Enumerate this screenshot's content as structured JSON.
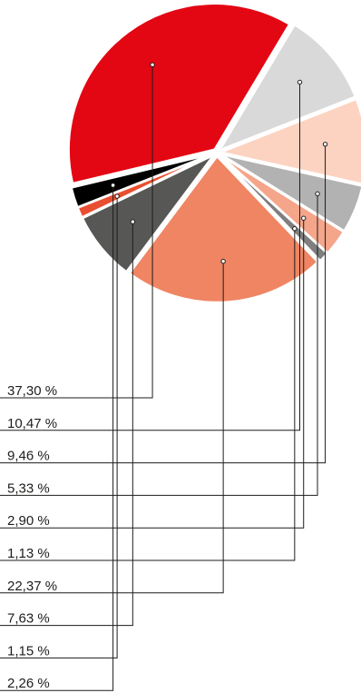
{
  "chart_data": {
    "type": "pie",
    "title": "",
    "slices": [
      {
        "label": "37,30 %",
        "value": 37.3,
        "color": "#e30613"
      },
      {
        "label": "10,47 %",
        "value": 10.47,
        "color": "#d9d9d9"
      },
      {
        "label": "9,46 %",
        "value": 9.46,
        "color": "#fcd3c1"
      },
      {
        "label": "5,33 %",
        "value": 5.33,
        "color": "#b2b2b2"
      },
      {
        "label": "2,90 %",
        "value": 2.9,
        "color": "#f4a58a"
      },
      {
        "label": "1,13 %",
        "value": 1.13,
        "color": "#7f7f7f"
      },
      {
        "label": "22,37 %",
        "value": 22.37,
        "color": "#ef8563"
      },
      {
        "label": "7,63 %",
        "value": 7.63,
        "color": "#575756"
      },
      {
        "label": "1,15 %",
        "value": 1.15,
        "color": "#e94e30"
      },
      {
        "label": "2,26 %",
        "value": 2.26,
        "color": "#000000"
      }
    ]
  }
}
